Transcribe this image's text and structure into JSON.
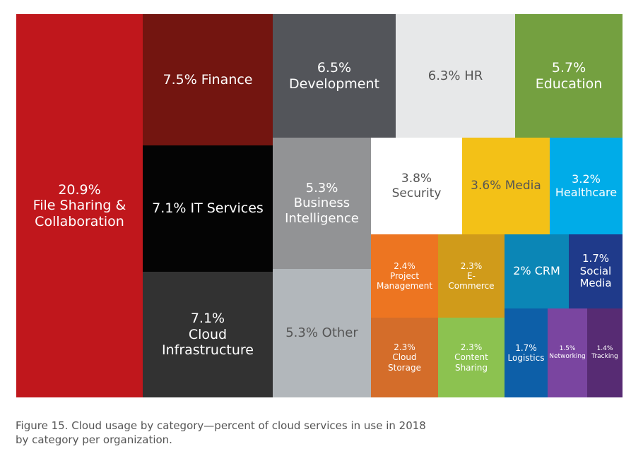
{
  "caption": "Figure 15. Cloud usage by category—percent of cloud services in use in 2018 by category per organization.",
  "chart_data": {
    "type": "treemap",
    "title": "",
    "unit": "percent of cloud services in use per organization (2018)",
    "items": [
      {
        "id": "file-sharing-collaboration",
        "label": "20.9%\nFile Sharing &\nCollaboration",
        "category": "File Sharing & Collaboration",
        "value": 20.9,
        "color": "#c0171c",
        "text_color": "#ffffff"
      },
      {
        "id": "finance",
        "label": "7.5% Finance",
        "category": "Finance",
        "value": 7.5,
        "color": "#731510",
        "text_color": "#ffffff"
      },
      {
        "id": "it-services",
        "label": "7.1% IT Services",
        "category": "IT Services",
        "value": 7.1,
        "color": "#040404",
        "text_color": "#ffffff"
      },
      {
        "id": "cloud-infrastructure",
        "label": "7.1%\nCloud\nInfrastructure",
        "category": "Cloud Infrastructure",
        "value": 7.1,
        "color": "#323232",
        "text_color": "#ffffff"
      },
      {
        "id": "development",
        "label": "6.5%\nDevelopment",
        "category": "Development",
        "value": 6.5,
        "color": "#53555a",
        "text_color": "#ffffff"
      },
      {
        "id": "hr",
        "label": "6.3% HR",
        "category": "HR",
        "value": 6.3,
        "color": "#e7e8e9",
        "text_color": "#555555"
      },
      {
        "id": "education",
        "label": "5.7%\nEducation",
        "category": "Education",
        "value": 5.7,
        "color": "#74a040",
        "text_color": "#ffffff"
      },
      {
        "id": "business-intelligence",
        "label": "5.3%\nBusiness\nIntelligence",
        "category": "Business Intelligence",
        "value": 5.3,
        "color": "#929395",
        "text_color": "#ffffff"
      },
      {
        "id": "other",
        "label": "5.3% Other",
        "category": "Other",
        "value": 5.3,
        "color": "#b2b7bb",
        "text_color": "#555555"
      },
      {
        "id": "security",
        "label": "3.8%\nSecurity",
        "category": "Security",
        "value": 3.8,
        "color": "#ffffff",
        "text_color": "#555555"
      },
      {
        "id": "media",
        "label": "3.6% Media",
        "category": "Media",
        "value": 3.6,
        "color": "#f3c117",
        "text_color": "#555555"
      },
      {
        "id": "healthcare",
        "label": "3.2%\nHealthcare",
        "category": "Healthcare",
        "value": 3.2,
        "color": "#00ace8",
        "text_color": "#ffffff"
      },
      {
        "id": "project-management",
        "label": "2.4%\nProject\nManagement",
        "category": "Project Management",
        "value": 2.4,
        "color": "#ed7521",
        "text_color": "#ffffff"
      },
      {
        "id": "e-commerce",
        "label": "2.3%\nE-\nCommerce",
        "category": "E-Commerce",
        "value": 2.3,
        "color": "#d09b1a",
        "text_color": "#ffffff"
      },
      {
        "id": "crm",
        "label": "2% CRM",
        "category": "CRM",
        "value": 2.0,
        "color": "#0b86b6",
        "text_color": "#ffffff"
      },
      {
        "id": "social-media",
        "label": "1.7%\nSocial\nMedia",
        "category": "Social Media",
        "value": 1.7,
        "color": "#1f3a8a",
        "text_color": "#ffffff"
      },
      {
        "id": "cloud-storage",
        "label": "2.3%\nCloud\nStorage",
        "category": "Cloud Storage",
        "value": 2.3,
        "color": "#d46d2a",
        "text_color": "#ffffff"
      },
      {
        "id": "content-sharing",
        "label": "2.3%\nContent\nSharing",
        "category": "Content Sharing",
        "value": 2.3,
        "color": "#8cc250",
        "text_color": "#ffffff"
      },
      {
        "id": "logistics",
        "label": "1.7%\nLogistics",
        "category": "Logistics",
        "value": 1.7,
        "color": "#0d5fa8",
        "text_color": "#ffffff"
      },
      {
        "id": "networking",
        "label": "1.5%\nNetworking",
        "category": "Networking",
        "value": 1.5,
        "color": "#7a45a0",
        "text_color": "#ffffff"
      },
      {
        "id": "tracking",
        "label": "1.4%\nTracking",
        "category": "Tracking",
        "value": 1.4,
        "color": "#572b73",
        "text_color": "#ffffff"
      }
    ]
  }
}
